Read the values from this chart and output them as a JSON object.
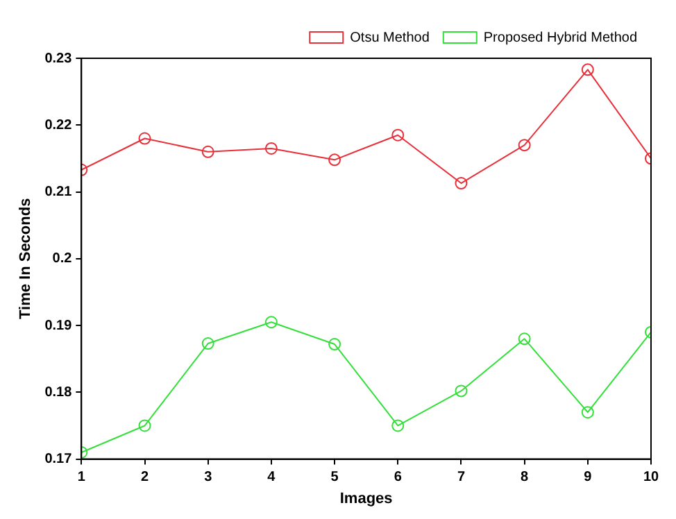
{
  "chart_data": {
    "type": "line",
    "xlabel": "Images",
    "ylabel": "Time In Seconds",
    "x": [
      1,
      2,
      3,
      4,
      5,
      6,
      7,
      8,
      9,
      10
    ],
    "series": [
      {
        "name": "Otsu Method",
        "color": "#e8303a",
        "values": [
          0.2133,
          0.218,
          0.216,
          0.2165,
          0.2148,
          0.2185,
          0.2113,
          0.217,
          0.2283,
          0.215
        ]
      },
      {
        "name": "Proposed Hybrid Method",
        "color": "#33e03a",
        "values": [
          0.171,
          0.175,
          0.1873,
          0.1905,
          0.1872,
          0.175,
          0.1802,
          0.188,
          0.177,
          0.189
        ]
      }
    ],
    "xlim": [
      1,
      10
    ],
    "xticks": [
      1,
      2,
      3,
      4,
      5,
      6,
      7,
      8,
      9,
      10
    ],
    "ylim": [
      0.17,
      0.23
    ],
    "yticks": [
      0.17,
      0.18,
      0.19,
      0.2,
      0.21,
      0.22,
      0.23
    ],
    "grid": false,
    "legend": "top right",
    "marker": "circle",
    "line_style": "solid"
  }
}
